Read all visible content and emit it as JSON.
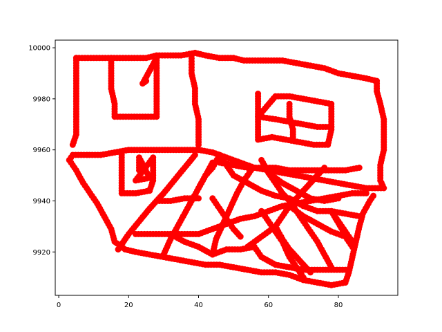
{
  "chart_data": {
    "type": "scatter",
    "title": "",
    "xlabel": "",
    "ylabel": "",
    "xlim": [
      -1,
      97
    ],
    "ylim": [
      9903,
      10003
    ],
    "xticks": [
      0,
      20,
      40,
      60,
      80
    ],
    "yticks": [
      9920,
      9940,
      9960,
      9980,
      10000
    ],
    "grid": false,
    "legend": "none",
    "marker": "circle",
    "color": "#ff0000",
    "outline": [
      [
        5,
        9996
      ],
      [
        10,
        9996
      ],
      [
        15,
        9996
      ],
      [
        20,
        9996
      ],
      [
        25,
        9996
      ],
      [
        28,
        9997
      ],
      [
        32,
        9997
      ],
      [
        35,
        9997
      ],
      [
        39,
        9998
      ],
      [
        42,
        9997
      ],
      [
        46,
        9996
      ],
      [
        50,
        9996
      ],
      [
        53,
        9995
      ],
      [
        57,
        9995
      ],
      [
        60,
        9995
      ],
      [
        64,
        9995
      ],
      [
        68,
        9994
      ],
      [
        72,
        9993
      ],
      [
        76,
        9992
      ],
      [
        80,
        9990
      ],
      [
        84,
        9989
      ],
      [
        88,
        9988
      ],
      [
        91,
        9987
      ],
      [
        91,
        9983
      ],
      [
        92,
        9978
      ],
      [
        93,
        9972
      ],
      [
        93,
        9966
      ],
      [
        93,
        9960
      ],
      [
        92,
        9954
      ],
      [
        92,
        9948
      ],
      [
        93,
        9945
      ],
      [
        88,
        9945
      ],
      [
        84,
        9946
      ],
      [
        80,
        9947
      ],
      [
        76,
        9948
      ],
      [
        72,
        9949
      ],
      [
        68,
        9950
      ],
      [
        64,
        9951
      ],
      [
        60,
        9952
      ],
      [
        56,
        9953
      ],
      [
        52,
        9955
      ],
      [
        48,
        9957
      ],
      [
        44,
        9959
      ],
      [
        40,
        9960
      ],
      [
        36,
        9960
      ],
      [
        32,
        9960
      ],
      [
        28,
        9960
      ],
      [
        24,
        9960
      ],
      [
        20,
        9960
      ],
      [
        16,
        9959
      ],
      [
        12,
        9958
      ],
      [
        8,
        9958
      ],
      [
        4,
        9958
      ],
      [
        3,
        9956
      ],
      [
        5,
        9952
      ],
      [
        7,
        9947
      ],
      [
        9,
        9943
      ],
      [
        11,
        9939
      ],
      [
        13,
        9934
      ],
      [
        15,
        9929
      ],
      [
        16,
        9924
      ],
      [
        19,
        9921
      ],
      [
        22,
        9920
      ],
      [
        26,
        9919
      ],
      [
        30,
        9918
      ],
      [
        34,
        9917
      ],
      [
        38,
        9916
      ],
      [
        42,
        9915
      ],
      [
        46,
        9915
      ],
      [
        50,
        9914
      ],
      [
        54,
        9913
      ],
      [
        58,
        9912
      ],
      [
        62,
        9912
      ],
      [
        66,
        9911
      ],
      [
        70,
        9909
      ],
      [
        74,
        9908
      ],
      [
        78,
        9907
      ],
      [
        82,
        9908
      ],
      [
        83,
        9912
      ],
      [
        84,
        9918
      ],
      [
        85,
        9924
      ],
      [
        86,
        9930
      ],
      [
        87,
        9935
      ],
      [
        89,
        9940
      ],
      [
        90,
        9942
      ],
      [
        4,
        9962
      ],
      [
        5,
        9966
      ],
      [
        5,
        9970
      ],
      [
        5,
        9976
      ],
      [
        5,
        9981
      ],
      [
        5,
        9986
      ],
      [
        5,
        9990
      ],
      [
        5,
        9994
      ]
    ],
    "interior_lines": [
      [
        15,
        9996
      ],
      [
        15,
        9990
      ],
      [
        15,
        9984
      ],
      [
        16,
        9978
      ],
      [
        16,
        9973
      ],
      [
        20,
        9973
      ],
      [
        24,
        9973
      ],
      [
        28,
        9973
      ],
      [
        28,
        9978
      ],
      [
        28,
        9984
      ],
      [
        28,
        9990
      ],
      [
        28,
        9996
      ],
      [
        24,
        9986
      ],
      [
        25,
        9987
      ],
      [
        38,
        9997
      ],
      [
        38,
        9990
      ],
      [
        39,
        9984
      ],
      [
        39,
        9978
      ],
      [
        40,
        9972
      ],
      [
        40,
        9966
      ],
      [
        40,
        9962
      ],
      [
        57,
        9982
      ],
      [
        57,
        9976
      ],
      [
        57,
        9970
      ],
      [
        57,
        9964
      ],
      [
        61,
        9965
      ],
      [
        65,
        9964
      ],
      [
        69,
        9963
      ],
      [
        73,
        9962
      ],
      [
        77,
        9962
      ],
      [
        78,
        9968
      ],
      [
        78,
        9974
      ],
      [
        78,
        9978
      ],
      [
        74,
        9979
      ],
      [
        70,
        9980
      ],
      [
        66,
        9981
      ],
      [
        62,
        9981
      ],
      [
        57,
        9973
      ],
      [
        62,
        9972
      ],
      [
        66,
        9971
      ],
      [
        70,
        9970
      ],
      [
        74,
        9969
      ],
      [
        78,
        9969
      ],
      [
        66,
        9978
      ],
      [
        66,
        9973
      ],
      [
        67,
        9968
      ],
      [
        67,
        9964
      ],
      [
        18,
        9958
      ],
      [
        18,
        9952
      ],
      [
        18,
        9947
      ],
      [
        18,
        9943
      ],
      [
        22,
        9943
      ],
      [
        26,
        9944
      ],
      [
        27,
        9948
      ],
      [
        27,
        9953
      ],
      [
        27,
        9957
      ],
      [
        22,
        9948
      ],
      [
        26,
        9949
      ],
      [
        23,
        9957
      ],
      [
        23,
        9952
      ],
      [
        17,
        9921
      ],
      [
        20,
        9927
      ],
      [
        23,
        9932
      ],
      [
        26,
        9937
      ],
      [
        30,
        9943
      ],
      [
        33,
        9948
      ],
      [
        36,
        9953
      ],
      [
        39,
        9958
      ],
      [
        22,
        9927
      ],
      [
        27,
        9927
      ],
      [
        32,
        9927
      ],
      [
        36,
        9927
      ],
      [
        40,
        9927
      ],
      [
        44,
        9929
      ],
      [
        48,
        9931
      ],
      [
        52,
        9933
      ],
      [
        56,
        9934
      ],
      [
        60,
        9936
      ],
      [
        64,
        9938
      ],
      [
        68,
        9939
      ],
      [
        72,
        9940
      ],
      [
        76,
        9941
      ],
      [
        80,
        9942
      ],
      [
        84,
        9943
      ],
      [
        88,
        9943
      ],
      [
        30,
        9919
      ],
      [
        32,
        9925
      ],
      [
        34,
        9930
      ],
      [
        36,
        9935
      ],
      [
        38,
        9940
      ],
      [
        40,
        9945
      ],
      [
        42,
        9950
      ],
      [
        44,
        9955
      ],
      [
        28,
        9940
      ],
      [
        32,
        9940
      ],
      [
        36,
        9941
      ],
      [
        40,
        9941
      ],
      [
        32,
        9927
      ],
      [
        36,
        9924
      ],
      [
        40,
        9922
      ],
      [
        44,
        9919
      ],
      [
        48,
        9921
      ],
      [
        52,
        9921
      ],
      [
        56,
        9922
      ],
      [
        58,
        9918
      ],
      [
        62,
        9915
      ],
      [
        66,
        9914
      ],
      [
        70,
        9913
      ],
      [
        74,
        9913
      ],
      [
        78,
        9913
      ],
      [
        82,
        9913
      ],
      [
        44,
        9919
      ],
      [
        45,
        9925
      ],
      [
        47,
        9931
      ],
      [
        49,
        9937
      ],
      [
        51,
        9943
      ],
      [
        53,
        9948
      ],
      [
        55,
        9952
      ],
      [
        44,
        9941
      ],
      [
        46,
        9937
      ],
      [
        48,
        9933
      ],
      [
        50,
        9929
      ],
      [
        52,
        9926
      ],
      [
        46,
        9955
      ],
      [
        50,
        9954
      ],
      [
        54,
        9953
      ],
      [
        58,
        9953
      ],
      [
        62,
        9953
      ],
      [
        66,
        9952
      ],
      [
        70,
        9952
      ],
      [
        74,
        9952
      ],
      [
        78,
        9952
      ],
      [
        82,
        9952
      ],
      [
        86,
        9953
      ],
      [
        40,
        9945
      ],
      [
        42,
        9950
      ],
      [
        44,
        9953
      ],
      [
        46,
        9958
      ],
      [
        50,
        9950
      ],
      [
        54,
        9947
      ],
      [
        58,
        9944
      ],
      [
        62,
        9942
      ],
      [
        66,
        9941
      ],
      [
        70,
        9938
      ],
      [
        74,
        9936
      ],
      [
        78,
        9936
      ],
      [
        82,
        9935
      ],
      [
        86,
        9934
      ],
      [
        58,
        9956
      ],
      [
        60,
        9951
      ],
      [
        62,
        9947
      ],
      [
        64,
        9943
      ],
      [
        66,
        9940
      ],
      [
        68,
        9936
      ],
      [
        70,
        9932
      ],
      [
        72,
        9928
      ],
      [
        74,
        9924
      ],
      [
        76,
        9919
      ],
      [
        78,
        9914
      ],
      [
        60,
        9951
      ],
      [
        64,
        9947
      ],
      [
        68,
        9944
      ],
      [
        72,
        9941
      ],
      [
        76,
        9940
      ],
      [
        80,
        9941
      ],
      [
        54,
        9922
      ],
      [
        58,
        9926
      ],
      [
        62,
        9930
      ],
      [
        64,
        9934
      ],
      [
        66,
        9938
      ],
      [
        68,
        9941
      ],
      [
        70,
        9944
      ],
      [
        72,
        9947
      ],
      [
        74,
        9950
      ],
      [
        76,
        9953
      ],
      [
        62,
        9930
      ],
      [
        64,
        9925
      ],
      [
        66,
        9921
      ],
      [
        68,
        9918
      ],
      [
        70,
        9915
      ],
      [
        72,
        9912
      ],
      [
        58,
        9936
      ],
      [
        60,
        9932
      ],
      [
        62,
        9928
      ],
      [
        64,
        9924
      ],
      [
        66,
        9918
      ],
      [
        68,
        9914
      ],
      [
        70,
        9910
      ],
      [
        66,
        9938
      ],
      [
        70,
        9934
      ],
      [
        74,
        9931
      ],
      [
        78,
        9928
      ],
      [
        82,
        9926
      ],
      [
        84,
        9922
      ],
      [
        78,
        9936
      ],
      [
        80,
        9932
      ],
      [
        82,
        9928
      ],
      [
        84,
        9924
      ]
    ]
  }
}
